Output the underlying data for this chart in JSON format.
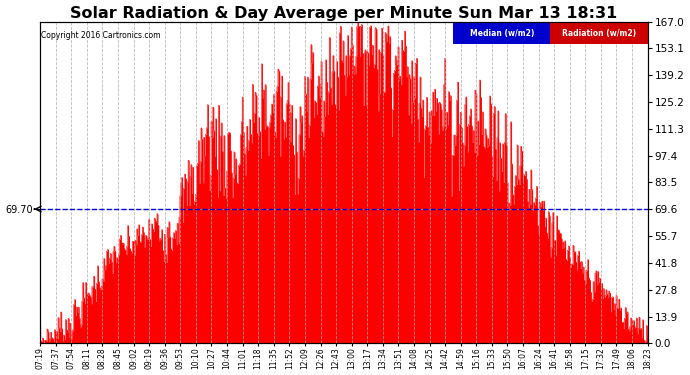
{
  "title": "Solar Radiation & Day Average per Minute Sun Mar 13 18:31",
  "copyright": "Copyright 2016 Cartronics.com",
  "median_value": 69.7,
  "y_max": 167.0,
  "y_min": 0.0,
  "y_ticks": [
    0.0,
    13.9,
    27.8,
    41.8,
    55.7,
    69.6,
    83.5,
    97.4,
    111.3,
    125.2,
    139.2,
    153.1,
    167.0
  ],
  "y_tick_labels_right": [
    "0.0",
    "13.9",
    "27.8",
    "41.8",
    "55.7",
    "69.6",
    "83.5",
    "97.4",
    "111.3",
    "125.2",
    "139.2",
    "153.1",
    "167.0"
  ],
  "bar_color": "#FF0000",
  "median_line_color": "#0000CC",
  "background_color": "#FFFFFF",
  "grid_color": "#AAAAAA",
  "title_fontsize": 13,
  "legend_median_color": "#0000CC",
  "legend_radiation_color": "#CC0000",
  "x_tick_labels": [
    "07:19",
    "07:37",
    "07:54",
    "08:11",
    "08:28",
    "08:45",
    "09:02",
    "09:19",
    "09:36",
    "09:53",
    "10:10",
    "10:27",
    "10:44",
    "11:01",
    "11:18",
    "11:35",
    "11:52",
    "12:09",
    "12:26",
    "12:43",
    "13:00",
    "13:17",
    "13:34",
    "13:51",
    "14:08",
    "14:25",
    "14:42",
    "14:59",
    "15:16",
    "15:33",
    "15:50",
    "16:07",
    "16:24",
    "16:41",
    "16:58",
    "17:15",
    "17:32",
    "17:49",
    "18:06",
    "18:23"
  ],
  "n_points": 664
}
